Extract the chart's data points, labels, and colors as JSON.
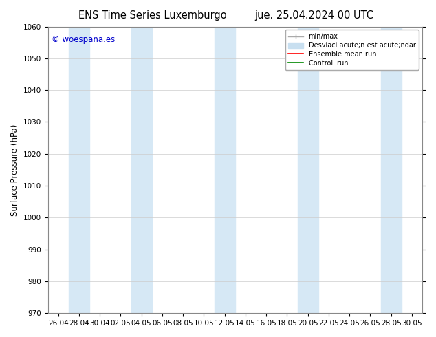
{
  "title_left": "ENS Time Series Luxemburgo",
  "title_right": "jue. 25.04.2024 00 UTC",
  "ylabel": "Surface Pressure (hPa)",
  "watermark": "© woespana.es",
  "watermark_color": "#0000cc",
  "ylim": [
    970,
    1060
  ],
  "yticks": [
    970,
    980,
    990,
    1000,
    1010,
    1020,
    1030,
    1040,
    1050,
    1060
  ],
  "xtick_labels": [
    "26.04",
    "28.04",
    "30.04",
    "02.05",
    "04.05",
    "06.05",
    "08.05",
    "10.05",
    "12.05",
    "14.05",
    "16.05",
    "18.05",
    "20.05",
    "22.05",
    "24.05",
    "26.05",
    "28.05",
    "30.05"
  ],
  "num_xticks": 18,
  "xlim": [
    0,
    17
  ],
  "shaded_band_indices": [
    1,
    4,
    8,
    12,
    16
  ],
  "shaded_color": "#d6e8f5",
  "background_color": "#ffffff",
  "legend_label_minmax": "min/max",
  "legend_label_std": "Desviaci acute;n est acute;ndar",
  "legend_label_ensemble": "Ensemble mean run",
  "legend_label_control": "Controll run",
  "legend_minmax_color": "#aaaaaa",
  "legend_std_color": "#c8dff0",
  "legend_ensemble_color": "#ff0000",
  "legend_control_color": "#008800",
  "grid_color": "#cccccc",
  "tick_fontsize": 7.5,
  "title_fontsize": 10.5,
  "spine_color": "#888888"
}
